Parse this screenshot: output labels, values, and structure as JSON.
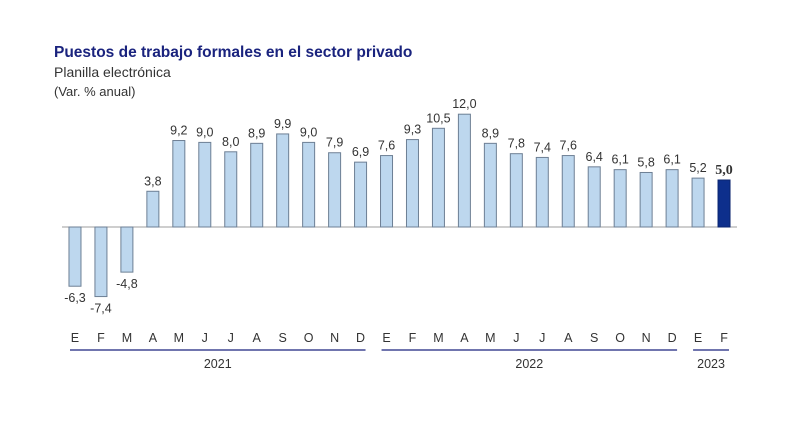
{
  "chart_data": {
    "type": "bar",
    "title": "Puestos de trabajo formales en el sector privado",
    "subtitle": "Planilla electrónica",
    "unit_label": "(Var. % anual)",
    "categories": [
      "E",
      "F",
      "M",
      "A",
      "M",
      "J",
      "J",
      "A",
      "S",
      "O",
      "N",
      "D",
      "E",
      "F",
      "M",
      "A",
      "M",
      "J",
      "J",
      "A",
      "S",
      "O",
      "N",
      "D",
      "E",
      "F"
    ],
    "values": [
      -6.3,
      -7.4,
      -4.8,
      3.8,
      9.2,
      9.0,
      8.0,
      8.9,
      9.9,
      9.0,
      7.9,
      6.9,
      7.6,
      9.3,
      10.5,
      12.0,
      8.9,
      7.8,
      7.4,
      7.6,
      6.4,
      6.1,
      5.8,
      6.1,
      5.2,
      5.0
    ],
    "value_labels": [
      "-6,3",
      "-7,4",
      "-4,8",
      "3,8",
      "9,2",
      "9,0",
      "8,0",
      "8,9",
      "9,9",
      "9,0",
      "7,9",
      "6,9",
      "7,6",
      "9,3",
      "10,5",
      "12,0",
      "8,9",
      "7,8",
      "7,4",
      "7,6",
      "6,4",
      "6,1",
      "5,8",
      "6,1",
      "5,2",
      "5,0"
    ],
    "years": [
      {
        "label": "2021",
        "start": 0,
        "end": 11
      },
      {
        "label": "2022",
        "start": 12,
        "end": 23
      },
      {
        "label": "2023",
        "start": 24,
        "end": 25
      }
    ],
    "highlight_index": 25,
    "colors": {
      "bar_fill": "#bdd7ee",
      "bar_stroke": "#6d7f94",
      "highlight_fill": "#0d2f8c",
      "highlight_stroke": "#0a2470",
      "axis": "#9e9e9e",
      "year_rule": "#1a237e",
      "title": "#1a237e",
      "text": "#333333"
    },
    "grid": false,
    "legend": "none"
  }
}
